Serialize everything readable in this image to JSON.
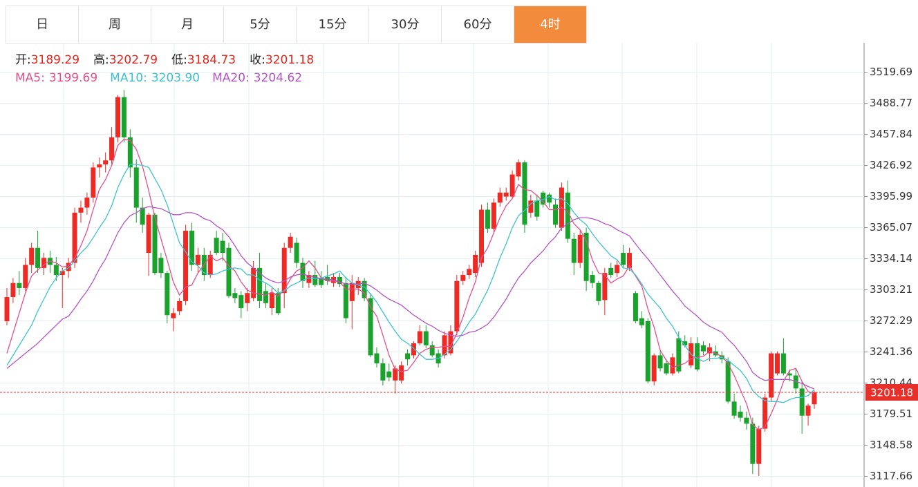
{
  "tabs": {
    "items": [
      "日",
      "周",
      "月",
      "5分",
      "15分",
      "30分",
      "60分",
      "4时"
    ],
    "active": 7
  },
  "chart_data": {
    "type": "candlestick",
    "info_labels": {
      "open": "开:",
      "high": "高:",
      "low": "低:",
      "close": "收:"
    },
    "up_color": "#ee2a24",
    "down_color": "#1aa22c",
    "open": [
      3272,
      3296,
      3310,
      3305,
      3328,
      3345,
      3325,
      3335,
      3328,
      3318,
      3322,
      3330,
      3380,
      3385,
      3395,
      3425,
      3428,
      3432,
      3455,
      3495,
      3455,
      3425,
      3385,
      3340,
      3378,
      3335,
      3320,
      3275,
      3282,
      3292,
      3362,
      3328,
      3338,
      3318,
      3355,
      3352,
      3345,
      3300,
      3298,
      3290,
      3295,
      3325,
      3302,
      3285,
      3300,
      3300,
      3345,
      3350,
      3330,
      3310,
      3318,
      3315,
      3316,
      3310,
      3316,
      3310,
      3292,
      3305,
      3312,
      3295,
      3240,
      3230,
      3222,
      3213,
      3213,
      3240,
      3238,
      3250,
      3262,
      3248,
      3240,
      3238,
      3240,
      3262,
      3312,
      3318,
      3320,
      3330,
      3383,
      3364,
      3390,
      3396,
      3396,
      3416,
      3430,
      3380,
      3392,
      3400,
      3398,
      3388,
      3365,
      3400,
      3354,
      3330,
      3360,
      3318,
      3310,
      3293,
      3325,
      3320,
      3340,
      3325,
      3300,
      3275,
      3272,
      3212,
      3238,
      3230,
      3220,
      3255,
      3252,
      3228,
      3250,
      3248,
      3240,
      3242,
      3238,
      3232,
      3192,
      3182,
      3176,
      3170,
      3130,
      3165,
      3196,
      3220,
      3240,
      3220,
      3218,
      3205,
      3178,
      3189.29
    ],
    "high": [
      3305,
      3315,
      3322,
      3335,
      3350,
      3362,
      3340,
      3342,
      3336,
      3325,
      3335,
      3385,
      3392,
      3400,
      3430,
      3435,
      3440,
      3465,
      3497,
      3502,
      3463,
      3433,
      3395,
      3380,
      3380,
      3340,
      3322,
      3285,
      3295,
      3368,
      3370,
      3345,
      3345,
      3342,
      3362,
      3360,
      3350,
      3305,
      3302,
      3305,
      3332,
      3340,
      3310,
      3305,
      3305,
      3350,
      3360,
      3355,
      3335,
      3322,
      3332,
      3322,
      3328,
      3320,
      3320,
      3316,
      3318,
      3316,
      3315,
      3300,
      3246,
      3235,
      3230,
      3228,
      3232,
      3244,
      3252,
      3268,
      3268,
      3252,
      3244,
      3262,
      3268,
      3318,
      3322,
      3328,
      3342,
      3388,
      3390,
      3394,
      3405,
      3405,
      3422,
      3433,
      3432,
      3398,
      3398,
      3402,
      3400,
      3394,
      3410,
      3412,
      3360,
      3362,
      3365,
      3322,
      3312,
      3325,
      3330,
      3332,
      3348,
      3345,
      3302,
      3282,
      3275,
      3240,
      3242,
      3234,
      3240,
      3262,
      3258,
      3256,
      3256,
      3252,
      3250,
      3248,
      3242,
      3236,
      3200,
      3188,
      3182,
      3176,
      3168,
      3200,
      3242,
      3242,
      3255,
      3224,
      3225,
      3212,
      3190,
      3202.79
    ],
    "low": [
      3268,
      3290,
      3298,
      3302,
      3320,
      3320,
      3318,
      3320,
      3312,
      3285,
      3315,
      3325,
      3370,
      3378,
      3390,
      3415,
      3420,
      3428,
      3450,
      3450,
      3415,
      3370,
      3360,
      3317,
      3318,
      3315,
      3270,
      3262,
      3278,
      3288,
      3322,
      3320,
      3312,
      3315,
      3338,
      3332,
      3295,
      3290,
      3275,
      3282,
      3292,
      3285,
      3285,
      3278,
      3278,
      3285,
      3340,
      3325,
      3305,
      3305,
      3306,
      3305,
      3308,
      3306,
      3306,
      3270,
      3264,
      3298,
      3292,
      3236,
      3226,
      3208,
      3212,
      3200,
      3210,
      3228,
      3235,
      3248,
      3245,
      3236,
      3226,
      3235,
      3238,
      3258,
      3308,
      3314,
      3316,
      3326,
      3360,
      3360,
      3386,
      3392,
      3394,
      3412,
      3360,
      3375,
      3372,
      3385,
      3385,
      3365,
      3362,
      3350,
      3318,
      3325,
      3302,
      3305,
      3288,
      3278,
      3315,
      3316,
      3325,
      3322,
      3270,
      3265,
      3210,
      3208,
      3222,
      3218,
      3218,
      3220,
      3246,
      3225,
      3222,
      3238,
      3232,
      3236,
      3230,
      3190,
      3175,
      3172,
      3164,
      3120,
      3118,
      3162,
      3192,
      3218,
      3218,
      3212,
      3200,
      3160,
      3168,
      3184.73
    ],
    "close": [
      3296,
      3310,
      3305,
      3328,
      3345,
      3325,
      3335,
      3328,
      3318,
      3322,
      3330,
      3380,
      3385,
      3395,
      3425,
      3428,
      3432,
      3455,
      3495,
      3455,
      3425,
      3385,
      3368,
      3378,
      3320,
      3320,
      3278,
      3280,
      3292,
      3362,
      3328,
      3338,
      3318,
      3338,
      3340,
      3340,
      3297,
      3295,
      3285,
      3300,
      3325,
      3292,
      3290,
      3300,
      3280,
      3345,
      3356,
      3330,
      3312,
      3318,
      3308,
      3308,
      3312,
      3316,
      3309,
      3275,
      3310,
      3312,
      3295,
      3238,
      3230,
      3213,
      3216,
      3225,
      3228,
      3234,
      3250,
      3262,
      3248,
      3238,
      3230,
      3258,
      3262,
      3312,
      3318,
      3324,
      3338,
      3383,
      3364,
      3390,
      3400,
      3400,
      3418,
      3430,
      3368,
      3392,
      3376,
      3388,
      3390,
      3368,
      3405,
      3354,
      3330,
      3358,
      3312,
      3310,
      3292,
      3320,
      3318,
      3328,
      3328,
      3340,
      3272,
      3268,
      3212,
      3238,
      3225,
      3220,
      3236,
      3222,
      3248,
      3250,
      3224,
      3242,
      3246,
      3238,
      3234,
      3192,
      3178,
      3176,
      3170,
      3130,
      3165,
      3196,
      3240,
      3240,
      3220,
      3218,
      3205,
      3178,
      3188,
      3201.18
    ],
    "series": [
      {
        "name": "MA5:",
        "color": "#e5508a",
        "label": "3199.69",
        "values": [
          3240,
          3260,
          3280,
          3300,
          3317,
          3323,
          3328,
          3332,
          3330,
          3326,
          3327,
          3335,
          3347,
          3362,
          3383,
          3403,
          3413,
          3427,
          3447,
          3453,
          3452,
          3443,
          3426,
          3402,
          3375,
          3354,
          3333,
          3311,
          3298,
          3306,
          3308,
          3320,
          3328,
          3337,
          3332,
          3335,
          3327,
          3322,
          3311,
          3303,
          3300,
          3299,
          3298,
          3301,
          3297,
          3303,
          3314,
          3322,
          3325,
          3332,
          3325,
          3315,
          3312,
          3312,
          3311,
          3304,
          3304,
          3304,
          3300,
          3286,
          3277,
          3258,
          3238,
          3224,
          3222,
          3223,
          3231,
          3240,
          3244,
          3246,
          3246,
          3247,
          3247,
          3260,
          3276,
          3295,
          3311,
          3335,
          3345,
          3360,
          3375,
          3387,
          3394,
          3408,
          3403,
          3402,
          3397,
          3391,
          3383,
          3383,
          3385,
          3381,
          3369,
          3363,
          3352,
          3333,
          3320,
          3318,
          3310,
          3314,
          3317,
          3327,
          3317,
          3307,
          3284,
          3266,
          3243,
          3233,
          3226,
          3228,
          3230,
          3235,
          3236,
          3237,
          3242,
          3240,
          3237,
          3230,
          3218,
          3204,
          3190,
          3169,
          3164,
          3167,
          3180,
          3194,
          3212,
          3223,
          3225,
          3212,
          3202,
          3199.69
        ]
      },
      {
        "name": "MA10:",
        "color": "#3cc3cf",
        "label": "3203.90",
        "values": [
          3228,
          3238,
          3248,
          3258,
          3268,
          3282,
          3294,
          3306,
          3315,
          3322,
          3325,
          3332,
          3340,
          3346,
          3355,
          3365,
          3374,
          3387,
          3405,
          3418,
          3428,
          3428,
          3427,
          3425,
          3414,
          3403,
          3388,
          3369,
          3350,
          3341,
          3331,
          3327,
          3320,
          3318,
          3319,
          3322,
          3324,
          3325,
          3324,
          3318,
          3318,
          3313,
          3310,
          3306,
          3300,
          3302,
          3307,
          3310,
          3313,
          3315,
          3314,
          3315,
          3317,
          3319,
          3322,
          3315,
          3310,
          3308,
          3306,
          3299,
          3291,
          3281,
          3271,
          3262,
          3254,
          3250,
          3245,
          3239,
          3234,
          3234,
          3235,
          3239,
          3244,
          3252,
          3261,
          3271,
          3279,
          3291,
          3303,
          3318,
          3335,
          3349,
          3365,
          3377,
          3382,
          3389,
          3392,
          3393,
          3396,
          3393,
          3394,
          3389,
          3380,
          3373,
          3368,
          3359,
          3351,
          3344,
          3337,
          3333,
          3325,
          3324,
          3318,
          3309,
          3299,
          3292,
          3285,
          3275,
          3267,
          3256,
          3248,
          3239,
          3235,
          3232,
          3235,
          3235,
          3236,
          3233,
          3228,
          3223,
          3215,
          3203,
          3197,
          3193,
          3192,
          3192,
          3191,
          3194,
          3196,
          3196,
          3198,
          3203.9
        ]
      },
      {
        "name": "MA20:",
        "color": "#b454c4",
        "label": "3204.62",
        "values": [
          3225,
          3230,
          3235,
          3240,
          3245,
          3250,
          3256,
          3262,
          3268,
          3274,
          3277,
          3285,
          3294,
          3302,
          3312,
          3324,
          3334,
          3347,
          3360,
          3370,
          3377,
          3380,
          3384,
          3386,
          3385,
          3384,
          3381,
          3378,
          3378,
          3380,
          3380,
          3378,
          3374,
          3372,
          3367,
          3363,
          3356,
          3347,
          3337,
          3330,
          3325,
          3320,
          3315,
          3312,
          3310,
          3312,
          3316,
          3318,
          3319,
          3317,
          3316,
          3314,
          3314,
          3313,
          3311,
          3309,
          3309,
          3309,
          3310,
          3307,
          3303,
          3298,
          3294,
          3291,
          3288,
          3283,
          3278,
          3274,
          3270,
          3267,
          3263,
          3260,
          3258,
          3257,
          3258,
          3261,
          3262,
          3265,
          3269,
          3276,
          3285,
          3294,
          3305,
          3315,
          3322,
          3330,
          3336,
          3342,
          3350,
          3356,
          3365,
          3369,
          3373,
          3375,
          3375,
          3374,
          3372,
          3369,
          3367,
          3363,
          3360,
          3357,
          3349,
          3341,
          3334,
          3326,
          3318,
          3310,
          3302,
          3295,
          3287,
          3282,
          3277,
          3271,
          3267,
          3264,
          3261,
          3254,
          3248,
          3240,
          3232,
          3221,
          3216,
          3213,
          3214,
          3214,
          3214,
          3214,
          3212,
          3210,
          3207,
          3204.62
        ]
      }
    ],
    "ylim": [
      3107,
      3549
    ],
    "yticks": [
      3519.69,
      3488.77,
      3457.84,
      3426.92,
      3395.99,
      3365.07,
      3334.14,
      3303.21,
      3272.29,
      3241.36,
      3210.44,
      3179.51,
      3148.58,
      3117.66
    ],
    "grid": true,
    "price_line_color": "#e8302b"
  }
}
